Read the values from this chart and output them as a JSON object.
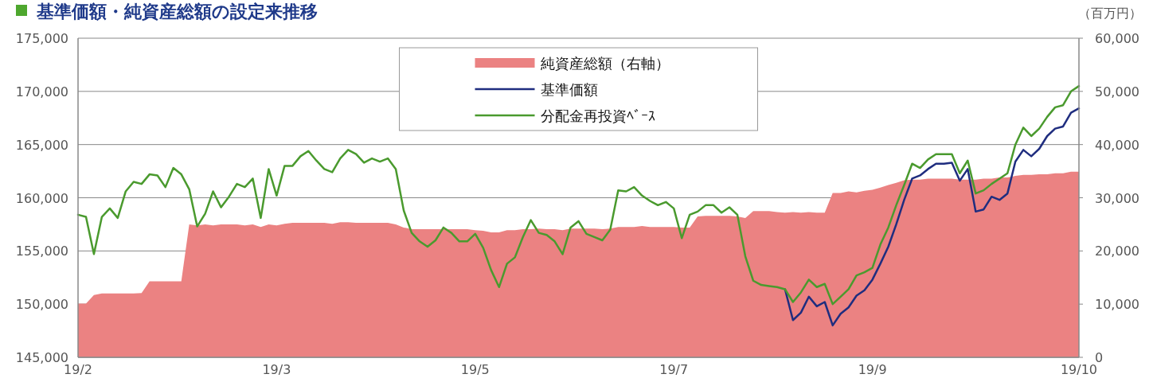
{
  "chart_data": {
    "type": "line",
    "title": "基準価額・純資産総額の設定来推移",
    "y2label": "（百万円）",
    "categories": [
      "19/2",
      null,
      null,
      null,
      null,
      null,
      null,
      null,
      null,
      null,
      null,
      null,
      null,
      null,
      null,
      null,
      null,
      null,
      null,
      null,
      null,
      null,
      null,
      null,
      null,
      "19/3",
      null,
      null,
      null,
      null,
      null,
      null,
      null,
      null,
      null,
      null,
      null,
      null,
      null,
      null,
      null,
      null,
      null,
      null,
      null,
      null,
      null,
      null,
      null,
      null,
      "19/5",
      null,
      null,
      null,
      null,
      null,
      null,
      null,
      null,
      null,
      null,
      null,
      null,
      null,
      null,
      null,
      null,
      null,
      null,
      null,
      null,
      null,
      null,
      null,
      null,
      "19/7",
      null,
      null,
      null,
      null,
      null,
      null,
      null,
      null,
      null,
      null,
      null,
      null,
      null,
      null,
      null,
      null,
      null,
      null,
      null,
      null,
      null,
      null,
      null,
      null,
      "19/9",
      null,
      null,
      null,
      null,
      null,
      null,
      null,
      null,
      null,
      null,
      null,
      null,
      null,
      null,
      null,
      null,
      null,
      null,
      null,
      null,
      null,
      null,
      null,
      null,
      null,
      "19/10"
    ],
    "series": [
      {
        "name": "純資産総額（右軸）",
        "type": "area",
        "axis": "y2",
        "color": "#eb8282",
        "values": [
          10100,
          10100,
          11700,
          12000,
          12000,
          12000,
          12000,
          12000,
          12100,
          14300,
          14300,
          14300,
          14300,
          14300,
          25000,
          24800,
          25000,
          24800,
          25000,
          25000,
          25000,
          24800,
          25000,
          24500,
          25000,
          24800,
          25100,
          25300,
          25300,
          25300,
          25300,
          25300,
          25100,
          25400,
          25400,
          25300,
          25300,
          25300,
          25300,
          25300,
          25000,
          24400,
          24100,
          24100,
          24100,
          24100,
          24100,
          24100,
          24100,
          24100,
          23900,
          23800,
          23500,
          23500,
          23900,
          23900,
          24100,
          24100,
          24200,
          24100,
          24100,
          23900,
          24200,
          24200,
          24200,
          24200,
          24100,
          24200,
          24500,
          24500,
          24500,
          24700,
          24500,
          24500,
          24500,
          24500,
          24400,
          24400,
          26500,
          26600,
          26600,
          26600,
          26600,
          26500,
          26200,
          27500,
          27500,
          27500,
          27300,
          27200,
          27300,
          27200,
          27300,
          27200,
          27200,
          30900,
          30900,
          31200,
          31000,
          31300,
          31500,
          31900,
          32400,
          32800,
          33300,
          33400,
          33400,
          33600,
          33600,
          33600,
          33600,
          33400,
          33400,
          33400,
          33600,
          33600,
          33800,
          33800,
          34100,
          34300,
          34300,
          34400,
          34400,
          34600,
          34600,
          34900,
          34900
        ]
      },
      {
        "name": "基準価額",
        "type": "line",
        "color": "#1f2d7f",
        "values": [
          null,
          null,
          null,
          null,
          null,
          null,
          null,
          null,
          null,
          null,
          null,
          null,
          null,
          null,
          null,
          null,
          null,
          null,
          null,
          null,
          null,
          null,
          null,
          null,
          null,
          null,
          null,
          null,
          null,
          null,
          null,
          null,
          null,
          null,
          null,
          null,
          null,
          null,
          null,
          null,
          null,
          null,
          null,
          null,
          null,
          null,
          null,
          null,
          null,
          null,
          null,
          null,
          null,
          null,
          null,
          null,
          null,
          null,
          null,
          null,
          null,
          null,
          null,
          null,
          null,
          null,
          null,
          null,
          null,
          null,
          null,
          null,
          null,
          null,
          null,
          null,
          null,
          null,
          null,
          null,
          null,
          null,
          null,
          null,
          null,
          null,
          null,
          null,
          null,
          151400,
          148500,
          149200,
          150700,
          149800,
          150200,
          148000,
          149100,
          149700,
          150800,
          151300,
          152300,
          153800,
          155400,
          157500,
          159800,
          161800,
          162100,
          162700,
          163200,
          163200,
          163300,
          161600,
          162700,
          158700,
          158900,
          160100,
          159800,
          160400,
          163400,
          164500,
          163900,
          164600,
          165800,
          166500,
          166700,
          168000,
          168400
        ]
      },
      {
        "name": "分配金再投資ﾍﾞｰｽ",
        "type": "line",
        "color": "#4a9a2e",
        "values": [
          158400,
          158200,
          154700,
          158200,
          159000,
          158100,
          160600,
          161500,
          161300,
          162200,
          162100,
          161000,
          162800,
          162200,
          160800,
          157300,
          158500,
          160600,
          159100,
          160100,
          161300,
          161000,
          161800,
          158100,
          162700,
          160200,
          163000,
          163000,
          163900,
          164400,
          163500,
          162700,
          162400,
          163700,
          164500,
          164100,
          163300,
          163700,
          163400,
          163700,
          162700,
          158800,
          156700,
          155900,
          155400,
          156000,
          157200,
          156700,
          155900,
          155900,
          156600,
          155300,
          153200,
          151600,
          153800,
          154400,
          156300,
          157900,
          156700,
          156500,
          155900,
          154700,
          157200,
          157800,
          156600,
          156300,
          156000,
          157000,
          160700,
          160600,
          161000,
          160200,
          159700,
          159300,
          159600,
          159000,
          156200,
          158400,
          158700,
          159300,
          159300,
          158600,
          159100,
          158400,
          154500,
          152200,
          151800,
          151700,
          151600,
          151400,
          150200,
          151100,
          152300,
          151600,
          151900,
          150000,
          150700,
          151400,
          152700,
          153000,
          153400,
          155600,
          157200,
          159300,
          161200,
          163200,
          162800,
          163600,
          164100,
          164100,
          164100,
          162300,
          163500,
          160400,
          160700,
          161300,
          161800,
          162300,
          165000,
          166600,
          165800,
          166500,
          167600,
          168500,
          168700,
          170000,
          170500
        ]
      }
    ],
    "ylim": [
      145000,
      175000
    ],
    "yticks": [
      {
        "value": 145000,
        "label": "145,000"
      },
      {
        "value": 150000,
        "label": "150,000"
      },
      {
        "value": 155000,
        "label": "155,000"
      },
      {
        "value": 160000,
        "label": "160,000"
      },
      {
        "value": 165000,
        "label": "165,000"
      },
      {
        "value": 170000,
        "label": "170,000"
      },
      {
        "value": 175000,
        "label": "175,000"
      }
    ],
    "y2lim": [
      0,
      60000
    ],
    "y2ticks": [
      0,
      {
        "value": 10000,
        "label": "10,000"
      },
      {
        "value": 20000,
        "label": "20,000"
      },
      {
        "value": 30000,
        "label": "30,000"
      },
      {
        "value": 40000,
        "label": "40,000"
      },
      {
        "value": 50000,
        "label": "50,000"
      },
      {
        "value": 60000,
        "label": "60,000"
      }
    ],
    "grid": "y",
    "legend": "top"
  }
}
